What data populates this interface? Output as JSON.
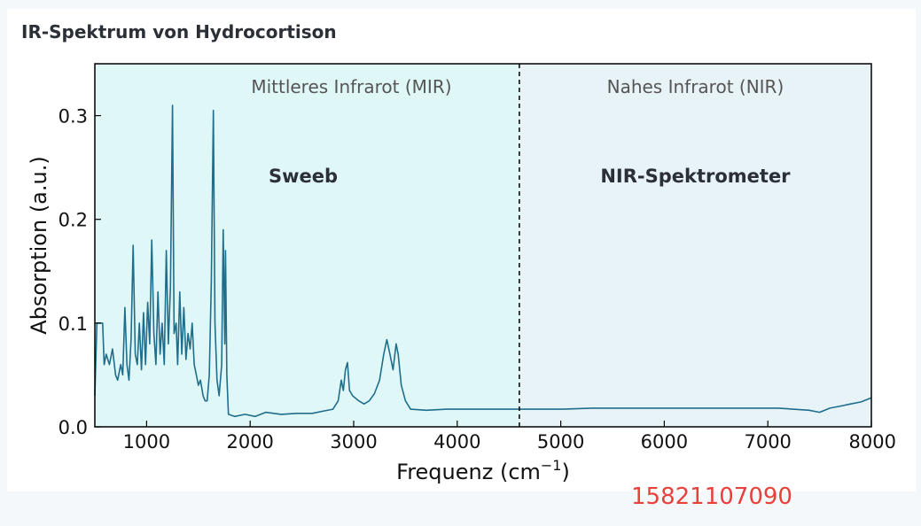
{
  "title": "IR-Spektrum von Hydrocortison",
  "watermark_number": "15821107090",
  "chart_data": {
    "type": "line",
    "xlabel": "Frequenz (cm",
    "xlabel_sup": "−1",
    "xlabel_close": ")",
    "ylabel": "Absorption (a.u.)",
    "xlim": [
      500,
      8000
    ],
    "ylim": [
      0,
      0.35
    ],
    "x_ticks": [
      1000,
      2000,
      3000,
      4000,
      5000,
      6000,
      7000,
      8000
    ],
    "y_ticks": [
      0.0,
      0.1,
      0.2,
      0.3
    ],
    "y_tick_labels": [
      "0.0",
      "0.1",
      "0.2",
      "0.3"
    ],
    "divider_x": 4600,
    "regions": [
      {
        "label": "Mittleres Infrarot (MIR)",
        "device": "Sweeb",
        "from": 500,
        "to": 4600,
        "color": "#e0f7f8"
      },
      {
        "label": "Nahes Infrarot (NIR)",
        "device": "NIR-Spektrometer",
        "from": 4600,
        "to": 8000,
        "color": "#e8f3f8"
      }
    ],
    "line_color": "#1e6e8c",
    "series": [
      {
        "points": [
          [
            500,
            0.03
          ],
          [
            520,
            0.1
          ],
          [
            550,
            0.1
          ],
          [
            575,
            0.1
          ],
          [
            590,
            0.06
          ],
          [
            610,
            0.07
          ],
          [
            640,
            0.06
          ],
          [
            670,
            0.075
          ],
          [
            700,
            0.05
          ],
          [
            720,
            0.045
          ],
          [
            750,
            0.06
          ],
          [
            770,
            0.05
          ],
          [
            790,
            0.115
          ],
          [
            810,
            0.06
          ],
          [
            830,
            0.045
          ],
          [
            850,
            0.085
          ],
          [
            870,
            0.175
          ],
          [
            890,
            0.07
          ],
          [
            910,
            0.06
          ],
          [
            930,
            0.1
          ],
          [
            950,
            0.055
          ],
          [
            970,
            0.11
          ],
          [
            990,
            0.06
          ],
          [
            1010,
            0.12
          ],
          [
            1030,
            0.08
          ],
          [
            1050,
            0.18
          ],
          [
            1070,
            0.09
          ],
          [
            1090,
            0.06
          ],
          [
            1110,
            0.13
          ],
          [
            1130,
            0.07
          ],
          [
            1150,
            0.1
          ],
          [
            1170,
            0.06
          ],
          [
            1190,
            0.17
          ],
          [
            1210,
            0.08
          ],
          [
            1230,
            0.135
          ],
          [
            1250,
            0.31
          ],
          [
            1265,
            0.09
          ],
          [
            1285,
            0.1
          ],
          [
            1300,
            0.06
          ],
          [
            1320,
            0.13
          ],
          [
            1340,
            0.07
          ],
          [
            1360,
            0.115
          ],
          [
            1380,
            0.065
          ],
          [
            1400,
            0.09
          ],
          [
            1420,
            0.075
          ],
          [
            1440,
            0.1
          ],
          [
            1460,
            0.06
          ],
          [
            1480,
            0.05
          ],
          [
            1500,
            0.04
          ],
          [
            1520,
            0.045
          ],
          [
            1545,
            0.03
          ],
          [
            1565,
            0.025
          ],
          [
            1585,
            0.025
          ],
          [
            1605,
            0.05
          ],
          [
            1625,
            0.14
          ],
          [
            1645,
            0.305
          ],
          [
            1660,
            0.1
          ],
          [
            1680,
            0.045
          ],
          [
            1700,
            0.03
          ],
          [
            1725,
            0.06
          ],
          [
            1740,
            0.19
          ],
          [
            1755,
            0.08
          ],
          [
            1762,
            0.17
          ],
          [
            1775,
            0.05
          ],
          [
            1790,
            0.012
          ],
          [
            1850,
            0.01
          ],
          [
            1950,
            0.012
          ],
          [
            2050,
            0.01
          ],
          [
            2150,
            0.014
          ],
          [
            2300,
            0.012
          ],
          [
            2450,
            0.013
          ],
          [
            2600,
            0.013
          ],
          [
            2700,
            0.015
          ],
          [
            2800,
            0.017
          ],
          [
            2850,
            0.025
          ],
          [
            2880,
            0.045
          ],
          [
            2900,
            0.035
          ],
          [
            2920,
            0.055
          ],
          [
            2940,
            0.062
          ],
          [
            2960,
            0.035
          ],
          [
            2990,
            0.03
          ],
          [
            3050,
            0.025
          ],
          [
            3100,
            0.022
          ],
          [
            3150,
            0.025
          ],
          [
            3200,
            0.032
          ],
          [
            3250,
            0.045
          ],
          [
            3290,
            0.07
          ],
          [
            3320,
            0.084
          ],
          [
            3350,
            0.07
          ],
          [
            3380,
            0.055
          ],
          [
            3410,
            0.08
          ],
          [
            3430,
            0.07
          ],
          [
            3460,
            0.04
          ],
          [
            3500,
            0.025
          ],
          [
            3550,
            0.017
          ],
          [
            3700,
            0.016
          ],
          [
            3900,
            0.017
          ],
          [
            4100,
            0.017
          ],
          [
            4300,
            0.017
          ],
          [
            4500,
            0.017
          ],
          [
            4700,
            0.017
          ],
          [
            5000,
            0.017
          ],
          [
            5300,
            0.018
          ],
          [
            5600,
            0.018
          ],
          [
            5900,
            0.018
          ],
          [
            6200,
            0.018
          ],
          [
            6500,
            0.018
          ],
          [
            6800,
            0.018
          ],
          [
            7100,
            0.018
          ],
          [
            7400,
            0.016
          ],
          [
            7500,
            0.014
          ],
          [
            7600,
            0.018
          ],
          [
            7700,
            0.02
          ],
          [
            7800,
            0.022
          ],
          [
            7900,
            0.024
          ],
          [
            8000,
            0.028
          ]
        ]
      }
    ]
  }
}
